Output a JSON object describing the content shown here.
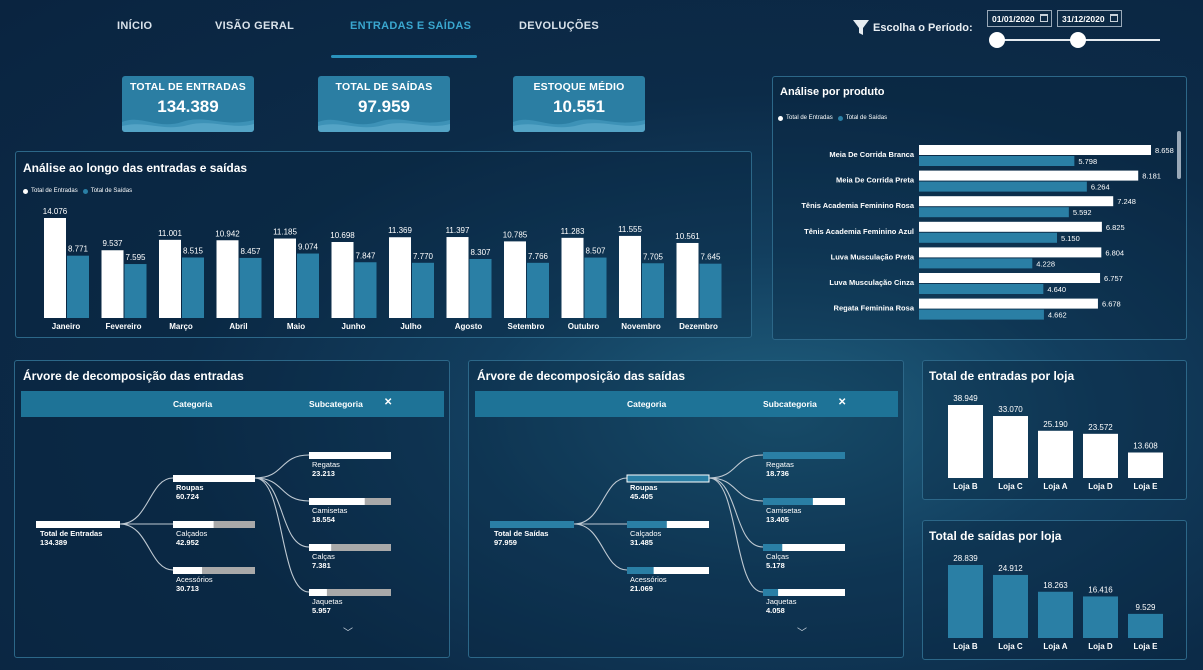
{
  "nav": {
    "tabs": [
      "INÍCIO",
      "VISÃO GERAL",
      "ENTRADAS E SAÍDAS",
      "DEVOLUÇÕES"
    ],
    "active_tab": "ENTRADAS E SAÍDAS"
  },
  "filter": {
    "label": "Escolha o Período:",
    "start_date": "01/01/2020",
    "end_date": "31/12/2020"
  },
  "kpis": [
    {
      "title": "TOTAL DE ENTRADAS",
      "value": "134.389"
    },
    {
      "title": "TOTAL DE SAÍDAS",
      "value": "97.959"
    },
    {
      "title": "ESTOQUE MÉDIO",
      "value": "10.551"
    }
  ],
  "colors": {
    "entradas": "#ffffff",
    "saidas": "#2a7fa5",
    "accent": "#2a93bd",
    "panel_border": "#2c6788",
    "remainder_gray": "#a9a9a9"
  },
  "monthly_chart": {
    "title": "Análise ao longo das entradas e saídas",
    "legend": [
      "Total de Entradas",
      "Total de Saídas"
    ]
  },
  "product_chart": {
    "title": "Análise por produto",
    "legend": [
      "Total de Entradas",
      "Total de Saídas"
    ]
  },
  "entradas_tree": {
    "title": "Árvore de decomposição das entradas",
    "header_categoria": "Categoria",
    "header_subcategoria": "Subcategoria",
    "root_label": "Total de Entradas",
    "root_value": "134.389",
    "categories": [
      {
        "label": "Roupas",
        "value": "60.724"
      },
      {
        "label": "Calçados",
        "value": "42.952"
      },
      {
        "label": "Acessórios",
        "value": "30.713"
      }
    ],
    "subcategories": [
      {
        "label": "Regatas",
        "value": "23.213"
      },
      {
        "label": "Camisetas",
        "value": "18.554"
      },
      {
        "label": "Calças",
        "value": "7.381"
      },
      {
        "label": "Jaquetas",
        "value": "5.957"
      }
    ]
  },
  "saidas_tree": {
    "title": "Árvore de decomposição das saídas",
    "header_categoria": "Categoria",
    "header_subcategoria": "Subcategoria",
    "root_label": "Total de Saídas",
    "root_value": "97.959",
    "categories": [
      {
        "label": "Roupas",
        "value": "45.405"
      },
      {
        "label": "Calçados",
        "value": "31.485"
      },
      {
        "label": "Acessórios",
        "value": "21.069"
      }
    ],
    "subcategories": [
      {
        "label": "Regatas",
        "value": "18.736"
      },
      {
        "label": "Camisetas",
        "value": "13.405"
      },
      {
        "label": "Calças",
        "value": "5.178"
      },
      {
        "label": "Jaquetas",
        "value": "4.058"
      }
    ]
  },
  "store_entradas": {
    "title": "Total de entradas por loja"
  },
  "store_saidas": {
    "title": "Total de saídas por loja"
  },
  "chart_data": [
    {
      "type": "bar",
      "title": "Análise ao longo das entradas e saídas",
      "categories": [
        "Janeiro",
        "Fevereiro",
        "Março",
        "Abril",
        "Maio",
        "Junho",
        "Julho",
        "Agosto",
        "Setembro",
        "Outubro",
        "Novembro",
        "Dezembro"
      ],
      "series": [
        {
          "name": "Total de Entradas",
          "values": [
            14076,
            9537,
            11001,
            10942,
            11185,
            10698,
            11369,
            11397,
            10785,
            11283,
            11555,
            10561
          ],
          "labels": [
            "14.076",
            "9.537",
            "11.001",
            "10.942",
            "11.185",
            "10.698",
            "11.369",
            "11.397",
            "10.785",
            "11.283",
            "11.555",
            "10.561"
          ]
        },
        {
          "name": "Total de Saídas",
          "values": [
            8771,
            7595,
            8515,
            8457,
            9074,
            7847,
            7770,
            8307,
            7766,
            8507,
            7705,
            7645
          ],
          "labels": [
            "8.771",
            "7.595",
            "8.515",
            "8.457",
            "9.074",
            "7.847",
            "7.770",
            "8.307",
            "7.766",
            "8.507",
            "7.705",
            "7.645"
          ]
        }
      ],
      "legend": "top-left"
    },
    {
      "type": "bar",
      "orientation": "horizontal",
      "title": "Análise por produto",
      "categories": [
        "Meia De Corrida Branca",
        "Meia De Corrida Preta",
        "Tênis Academia Feminino Rosa",
        "Tênis Academia Feminino Azul",
        "Luva Musculação Preta",
        "Luva Musculação Cinza",
        "Regata Feminina Rosa"
      ],
      "series": [
        {
          "name": "Total de Entradas",
          "values": [
            8658,
            8181,
            7248,
            6825,
            6804,
            6757,
            6678
          ],
          "labels": [
            "8.658",
            "8.181",
            "7.248",
            "6.825",
            "6.804",
            "6.757",
            "6.678"
          ]
        },
        {
          "name": "Total de Saídas",
          "values": [
            5798,
            6264,
            5592,
            5150,
            4228,
            4640,
            4662
          ],
          "labels": [
            "5.798",
            "6.264",
            "5.592",
            "5.150",
            "4.228",
            "4.640",
            "4.662"
          ]
        }
      ],
      "legend": "top-left"
    },
    {
      "type": "bar",
      "title": "Total de entradas por loja",
      "categories": [
        "Loja B",
        "Loja C",
        "Loja A",
        "Loja D",
        "Loja E"
      ],
      "values": [
        38949,
        33070,
        25190,
        23572,
        13608
      ],
      "labels": [
        "38.949",
        "33.070",
        "25.190",
        "23.572",
        "13.608"
      ]
    },
    {
      "type": "bar",
      "title": "Total de saídas por loja",
      "categories": [
        "Loja B",
        "Loja C",
        "Loja A",
        "Loja D",
        "Loja E"
      ],
      "values": [
        28839,
        24912,
        18263,
        16416,
        9529
      ],
      "labels": [
        "28.839",
        "24.912",
        "18.263",
        "16.416",
        "9.529"
      ]
    }
  ]
}
